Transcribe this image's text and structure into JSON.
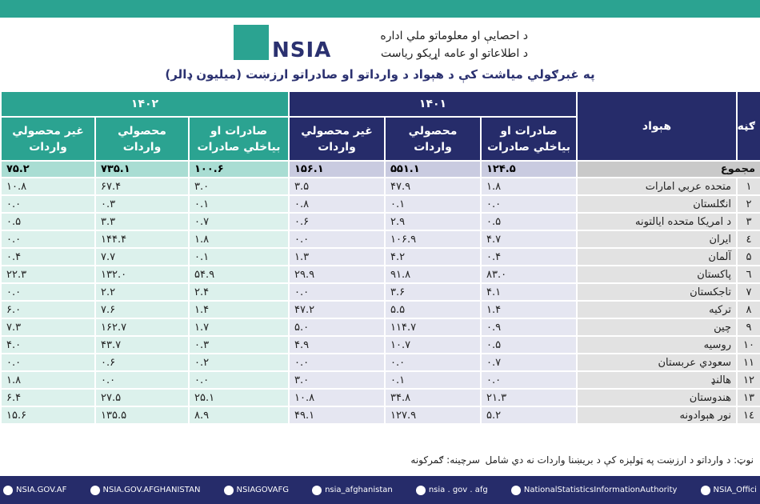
{
  "header": {
    "org_line1": "د احصایې او معلوماتو ملي اداره",
    "org_line2": "د اطلاعاتو او عامه اړیکو ریاست",
    "logo": "NSIA",
    "title": "په غبرګولي میاشت کې د هېواد د وارداتو او صادراتو ارزښت (میلیون ډالر)"
  },
  "table": {
    "col_number": "ګڼه",
    "col_country": "هېواد",
    "years": [
      "۱۴۰۱",
      "۱۴۰۲"
    ],
    "columns": [
      "صادرات او بیاخلي صادرات",
      "محصولي واردات",
      "غیر محصولي واردات"
    ],
    "total": {
      "label": "مجموع",
      "values": [
        "۱۲۴.۵",
        "۵۵۱.۱",
        "۱۵۶.۱",
        "۱۰۰.۶",
        "۷۳۵.۱",
        "۷۵.۲"
      ]
    },
    "rows": [
      [
        "۱",
        "متحده عربي امارات",
        "۱.۸",
        "۴۷.۹",
        "۳.۵",
        "۳.۰",
        "۶۷.۴",
        "۱۰.۸"
      ],
      [
        "۲",
        "انګلستان",
        "۰.۰",
        "۰.۱",
        "۰.۸",
        "۰.۱",
        "۰.۳",
        "۰.۰"
      ],
      [
        "۳",
        "د امریکا متحده ایالتونه",
        "۰.۵",
        "۲.۹",
        "۰.۶",
        "۰.۷",
        "۳.۳",
        "۰.۵"
      ],
      [
        "٤",
        "ایران",
        "۴.۷",
        "۱۰۶.۹",
        "۰.۰",
        "۱.۸",
        "۱۴۴.۴",
        "۰.۰"
      ],
      [
        "۵",
        "آلمان",
        "۰.۴",
        "۴.۲",
        "۱.۳",
        "۰.۱",
        "۷.۷",
        "۰.۴"
      ],
      [
        "٦",
        "پاکستان",
        "۸۳.۰",
        "۹۱.۸",
        "۲۹.۹",
        "۵۴.۹",
        "۱۳۲.۰",
        "۲۲.۳"
      ],
      [
        "۷",
        "تاجکستان",
        "۴.۱",
        "۳.۶",
        "۰.۰",
        "۲.۴",
        "۲.۲",
        "۰.۰"
      ],
      [
        "۸",
        "ترکیه",
        "۱.۴",
        "۵.۵",
        "۴۷.۲",
        "۱.۴",
        "۷.۶",
        "۶.۰"
      ],
      [
        "۹",
        "چین",
        "۰.۹",
        "۱۱۴.۷",
        "۵.۰",
        "۱.۷",
        "۱۶۲.۷",
        "۷.۳"
      ],
      [
        "۱۰",
        "روسیه",
        "۰.۵",
        "۱۰.۷",
        "۴.۹",
        "۰.۳",
        "۴۳.۷",
        "۴.۰"
      ],
      [
        "۱۱",
        "سعودي عربستان",
        "۰.۷",
        "۰.۰",
        "۰.۰",
        "۰.۲",
        "۰.۶",
        "۰.۰"
      ],
      [
        "۱۲",
        "هالنډ",
        "۰.۰",
        "۰.۱",
        "۳.۰",
        "۰.۰",
        "۰.۰",
        "۱.۸"
      ],
      [
        "۱۳",
        "هندوستان",
        "۲۱.۳",
        "۳۴.۸",
        "۱۰.۸",
        "۲۵.۱",
        "۲۷.۵",
        "۶.۴"
      ],
      [
        "۱٤",
        "نور هېوادونه",
        "۵.۲",
        "۱۲۷.۹",
        "۴۹.۱",
        "۸.۹",
        "۱۳۵.۵",
        "۱۵.۶"
      ]
    ]
  },
  "footer": {
    "note": "نوټ: د وارداتو د ارزښت په ټولېزه کې د بریښنا واردات نه دي شامل",
    "source": "سرچینه: ګمرکونه"
  },
  "social": [
    "NSIA.GOV.AF",
    "NSIA.GOV.AFGHANISTAN",
    "NSIAGOVAFG",
    "nsia_afghanistan",
    "nsia . gov . afg",
    "NationalStatisticsInformationAuthority",
    "NSIA_Offici"
  ]
}
